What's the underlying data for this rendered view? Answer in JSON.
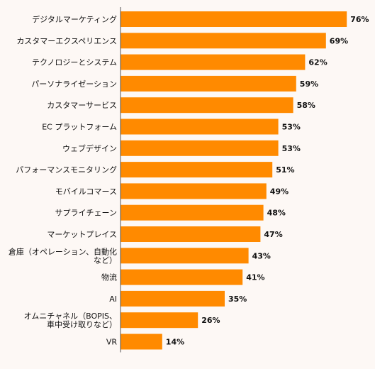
{
  "chart_data": {
    "type": "bar",
    "orientation": "horizontal",
    "categories": [
      "デジタルマーケティング",
      "カスタマーエクスペリエンス",
      "テクノロジーとシステム",
      "パーソナライゼーション",
      "カスタマーサービス",
      "EC プラットフォーム",
      "ウェブデザイン",
      "パフォーマンスモニタリング",
      "モバイルコマース",
      "サプライチェーン",
      "マーケットプレイス",
      "倉庫（オペレーション、自動化など）",
      "物流",
      "AI",
      "オムニチャネル（BOPIS、車中受け取りなど）",
      "VR"
    ],
    "label_lines": [
      [
        "デジタルマーケティング"
      ],
      [
        "カスタマーエクスペリエンス"
      ],
      [
        "テクノロジーとシステム"
      ],
      [
        "パーソナライゼーション"
      ],
      [
        "カスタマーサービス"
      ],
      [
        "EC プラットフォーム"
      ],
      [
        "ウェブデザイン"
      ],
      [
        "パフォーマンスモニタリング"
      ],
      [
        "モバイルコマース"
      ],
      [
        "サプライチェーン"
      ],
      [
        "マーケットプレイス"
      ],
      [
        "倉庫（オペレーション、自動化",
        "など）"
      ],
      [
        "物流"
      ],
      [
        "AI"
      ],
      [
        "オムニチャネル（BOPIS、",
        "車中受け取りなど）"
      ],
      [
        "VR"
      ]
    ],
    "values": [
      76,
      69,
      62,
      59,
      58,
      53,
      53,
      51,
      49,
      48,
      47,
      43,
      41,
      35,
      26,
      14
    ],
    "value_labels": [
      "76%",
      "69%",
      "62%",
      "59%",
      "58%",
      "53%",
      "53%",
      "51%",
      "49%",
      "48%",
      "47%",
      "43%",
      "41%",
      "35%",
      "26%",
      "14%"
    ],
    "xlim": [
      0,
      100
    ],
    "grid": false,
    "bar_color": "#ff8a00",
    "axis_color": "#555555",
    "background": "#fdf8f5"
  }
}
